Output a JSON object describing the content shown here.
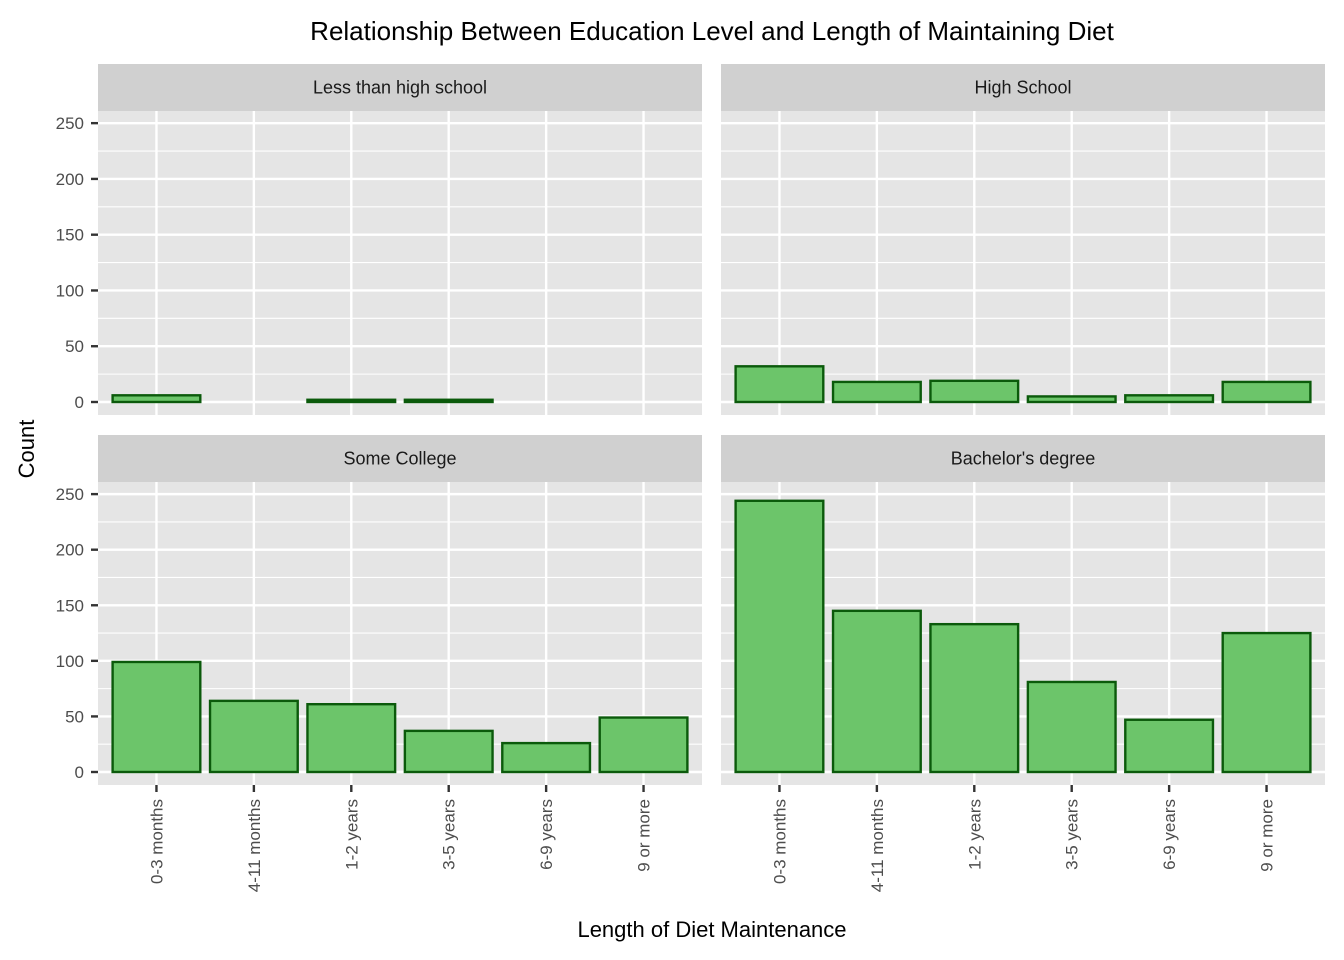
{
  "chart_data": {
    "type": "bar",
    "title": "Relationship Between Education Level and Length of Maintaining Diet",
    "xlabel": "Length of Diet Maintenance",
    "ylabel": "Count",
    "ylim": [
      0,
      260
    ],
    "yticks": [
      0,
      50,
      100,
      150,
      200,
      250
    ],
    "categories": [
      "0-3 months",
      "4-11 months",
      "1-2 years",
      "3-5 years",
      "6-9 years",
      "9 or more"
    ],
    "facets": [
      {
        "name": "Less than high school",
        "values": [
          6,
          0,
          2,
          2,
          0,
          0
        ]
      },
      {
        "name": "High School",
        "values": [
          32,
          18,
          19,
          5,
          6,
          18
        ]
      },
      {
        "name": "Some College",
        "values": [
          99,
          64,
          61,
          37,
          26,
          49
        ]
      },
      {
        "name": "Bachelor's degree",
        "values": [
          244,
          145,
          133,
          81,
          47,
          125
        ]
      }
    ],
    "grid": true,
    "colors": {
      "bar_fill": "#6cc56a",
      "bar_stroke": "#0b5a0b",
      "panel_bg": "#e5e5e5",
      "strip_bg": "#d0d0d0",
      "grid": "#ffffff",
      "tick": "#333333"
    }
  }
}
